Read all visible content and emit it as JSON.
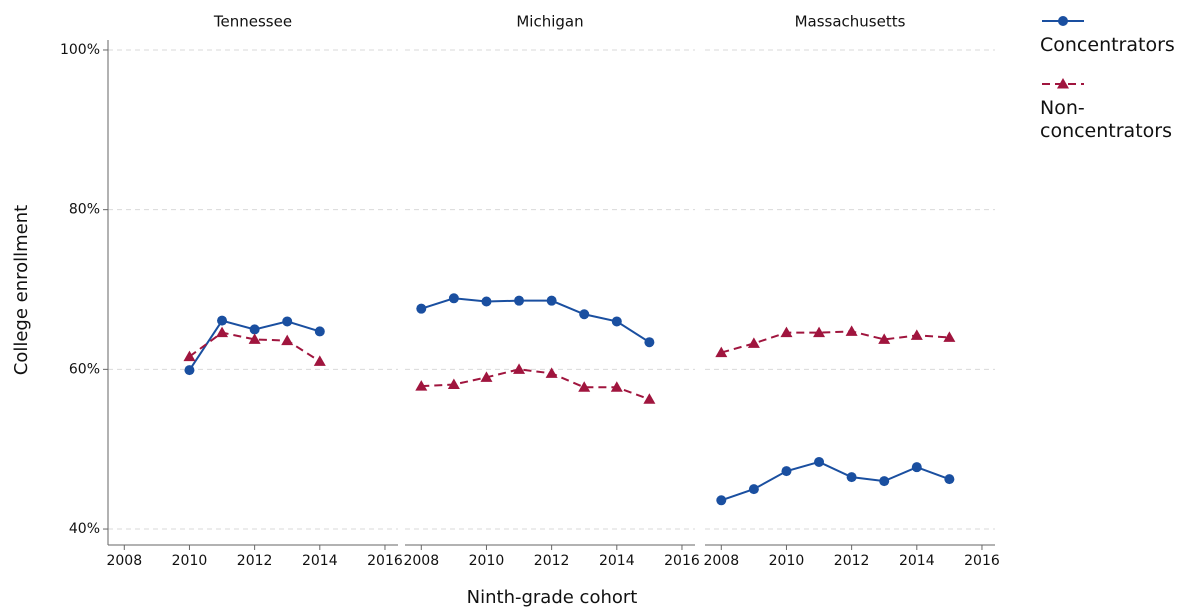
{
  "chart_data": [
    {
      "type": "line",
      "title": "Tennessee",
      "y_label": "College enrollment",
      "x": [
        2010,
        2011,
        2012,
        2013,
        2014
      ],
      "xlim": [
        2007.5,
        2016.4
      ],
      "xticks": [
        2008,
        2010,
        2012,
        2014,
        2016
      ],
      "ylim": [
        38,
        101.25
      ],
      "yticks": [
        {
          "value": 40,
          "label": "40%"
        },
        {
          "value": 60,
          "label": "60%"
        },
        {
          "value": 80,
          "label": "80%"
        },
        {
          "value": 100,
          "label": "100%"
        }
      ],
      "grid": true,
      "series": [
        {
          "name": "Concentrators",
          "color": "#1a4fa0",
          "marker": "circle",
          "line_style": "solid",
          "values": [
            59.9,
            66.1,
            65.0,
            66.0,
            64.75
          ]
        },
        {
          "name": "Non-concentrators",
          "color": "#a0153e",
          "marker": "triangle",
          "line_style": "dashed",
          "values": [
            61.6,
            64.6,
            63.75,
            63.6,
            61.0
          ]
        }
      ]
    },
    {
      "type": "line",
      "title": "Michigan",
      "x_label": "Ninth-grade cohort",
      "x": [
        2008,
        2009,
        2010,
        2011,
        2012,
        2013,
        2014,
        2015
      ],
      "xlim": [
        2007.5,
        2016.4
      ],
      "xticks": [
        2008,
        2010,
        2012,
        2014,
        2016
      ],
      "ylim": [
        38,
        101.25
      ],
      "yticks": [
        {
          "value": 40,
          "label": "40%"
        },
        {
          "value": 60,
          "label": "60%"
        },
        {
          "value": 80,
          "label": "80%"
        },
        {
          "value": 100,
          "label": "100%"
        }
      ],
      "grid": true,
      "series": [
        {
          "name": "Concentrators",
          "color": "#1a4fa0",
          "marker": "circle",
          "line_style": "solid",
          "values": [
            67.6,
            68.9,
            68.5,
            68.6,
            68.6,
            66.9,
            66.0,
            63.4
          ]
        },
        {
          "name": "Non-concentrators",
          "color": "#a0153e",
          "marker": "triangle",
          "line_style": "dashed",
          "values": [
            57.9,
            58.1,
            59.0,
            60.0,
            59.5,
            57.75,
            57.75,
            56.25
          ]
        }
      ]
    },
    {
      "type": "line",
      "title": "Massachusetts",
      "x": [
        2008,
        2009,
        2010,
        2011,
        2012,
        2013,
        2014,
        2015
      ],
      "xlim": [
        2007.5,
        2016.4
      ],
      "xticks": [
        2008,
        2010,
        2012,
        2014,
        2016
      ],
      "ylim": [
        38,
        101.25
      ],
      "yticks": [
        {
          "value": 40,
          "label": "40%"
        },
        {
          "value": 60,
          "label": "60%"
        },
        {
          "value": 80,
          "label": "80%"
        },
        {
          "value": 100,
          "label": "100%"
        }
      ],
      "grid": true,
      "series": [
        {
          "name": "Concentrators",
          "color": "#1a4fa0",
          "marker": "circle",
          "line_style": "solid",
          "values": [
            43.6,
            45.0,
            47.25,
            48.4,
            46.5,
            46.0,
            47.75,
            46.25
          ]
        },
        {
          "name": "Non-concentrators",
          "color": "#a0153e",
          "marker": "triangle",
          "line_style": "dashed",
          "values": [
            62.1,
            63.25,
            64.6,
            64.6,
            64.75,
            63.75,
            64.25,
            64.0
          ]
        }
      ]
    }
  ]
}
